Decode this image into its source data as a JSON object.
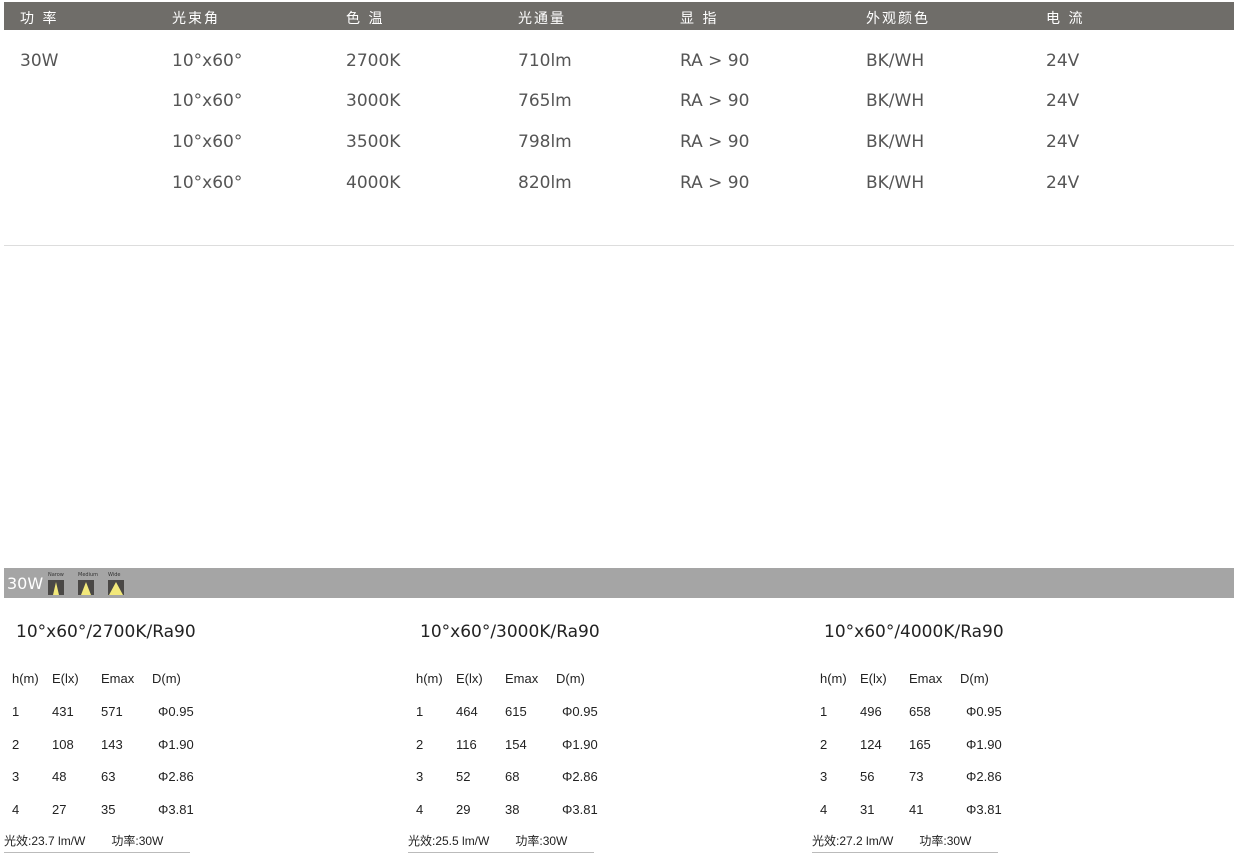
{
  "spec_table": {
    "headers": [
      "功 率",
      "光束角",
      "色 温",
      "光通量",
      "显 指",
      "外观颜色",
      "电 流"
    ],
    "rows": [
      [
        "30W",
        "10°x60°",
        "2700K",
        "710lm",
        "RA > 90",
        "BK/WH",
        "24V"
      ],
      [
        "",
        "10°x60°",
        "3000K",
        "765lm",
        "RA > 90",
        "BK/WH",
        "24V"
      ],
      [
        "",
        "10°x60°",
        "3500K",
        "798lm",
        "RA > 90",
        "BK/WH",
        "24V"
      ],
      [
        "",
        "10°x60°",
        "4000K",
        "820lm",
        "RA > 90",
        "BK/WH",
        "24V"
      ]
    ]
  },
  "photometric": {
    "power_label": "30W",
    "beams": [
      {
        "label": "Narow"
      },
      {
        "label": "Medium"
      },
      {
        "label": "Wide"
      }
    ],
    "headers": [
      "h(m)",
      "E(lx)",
      "Emax",
      "D(m)"
    ],
    "panels": [
      {
        "title": "10°x60°/2700K/Ra90",
        "rows": [
          [
            "1",
            "431",
            "571",
            "Φ0.95"
          ],
          [
            "2",
            "108",
            "143",
            "Φ1.90"
          ],
          [
            "3",
            "48",
            "63",
            "Φ2.86"
          ],
          [
            "4",
            "27",
            "35",
            "Φ3.81"
          ]
        ],
        "efficacy": "光效:23.7 lm/W",
        "power": "功率:30W"
      },
      {
        "title": "10°x60°/3000K/Ra90",
        "rows": [
          [
            "1",
            "464",
            "615",
            "Φ0.95"
          ],
          [
            "2",
            "116",
            "154",
            "Φ1.90"
          ],
          [
            "3",
            "52",
            "68",
            "Φ2.86"
          ],
          [
            "4",
            "29",
            "38",
            "Φ3.81"
          ]
        ],
        "efficacy": "光效:25.5 lm/W",
        "power": "功率:30W"
      },
      {
        "title": "10°x60°/4000K/Ra90",
        "rows": [
          [
            "1",
            "496",
            "658",
            "Φ0.95"
          ],
          [
            "2",
            "124",
            "165",
            "Φ1.90"
          ],
          [
            "3",
            "56",
            "73",
            "Φ2.86"
          ],
          [
            "4",
            "31",
            "41",
            "Φ3.81"
          ]
        ],
        "efficacy": "光效:27.2 lm/W",
        "power": "功率:30W"
      }
    ]
  },
  "colors": {
    "header_bg": "#6f6d69",
    "band_bg": "#a5a5a5",
    "beam_light": "#f2e87a"
  }
}
